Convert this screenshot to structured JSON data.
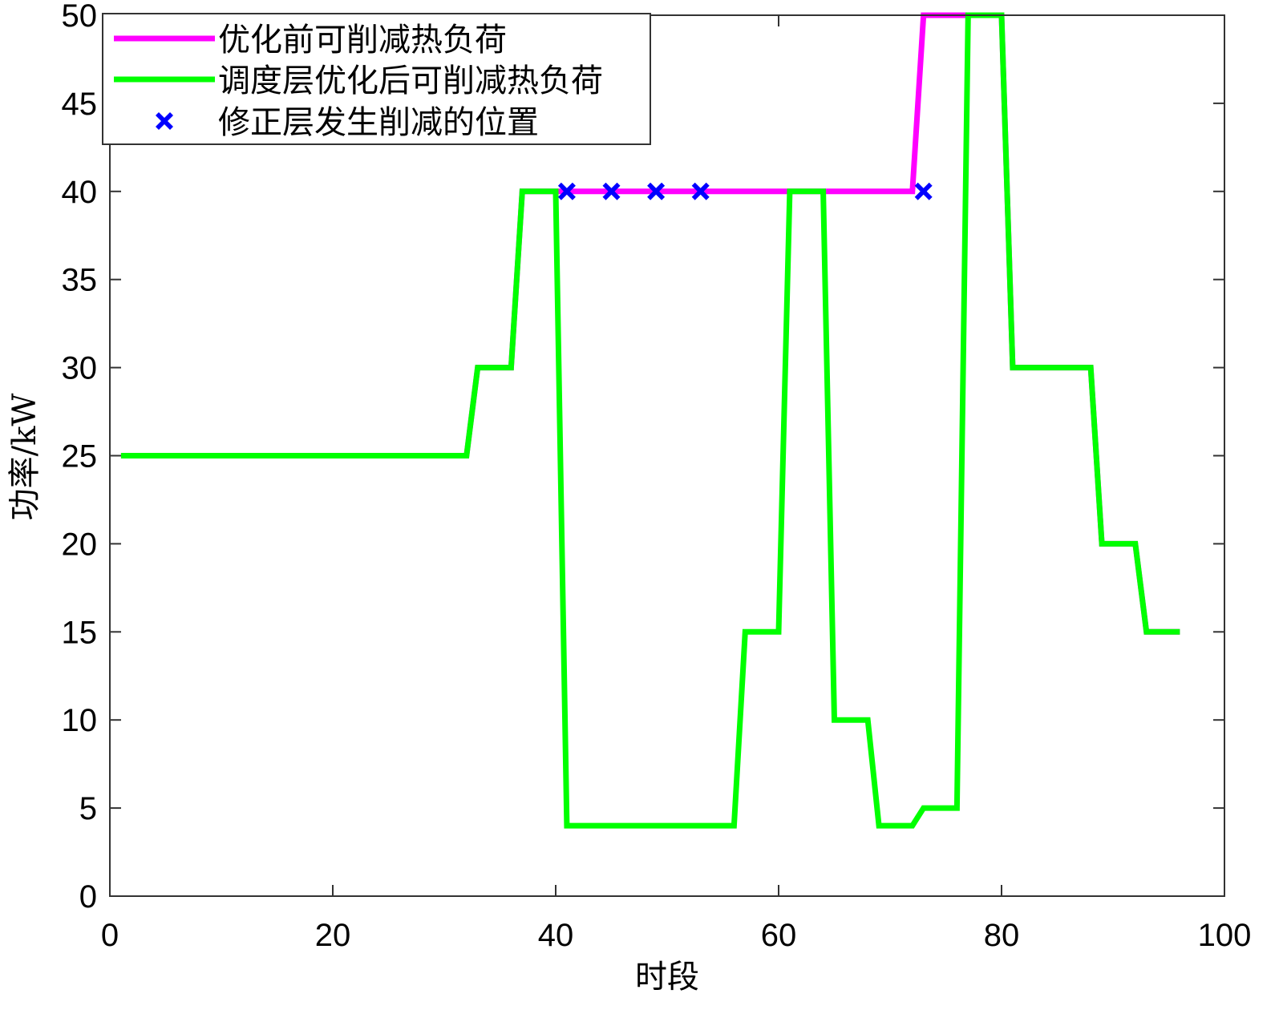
{
  "chart_data": {
    "type": "line",
    "title": "",
    "xlabel": "时段",
    "ylabel": "功率/kW",
    "xlim": [
      0,
      100
    ],
    "ylim": [
      0,
      50
    ],
    "xticks": [
      0,
      20,
      40,
      60,
      80,
      100
    ],
    "yticks": [
      0,
      5,
      10,
      15,
      20,
      25,
      30,
      35,
      40,
      45,
      50
    ],
    "grid": false,
    "legend_position": "top-left",
    "series": [
      {
        "name": "优化前可削减热负荷",
        "color": "#ff00ff",
        "points": [
          [
            1,
            25
          ],
          [
            32,
            25
          ],
          [
            33,
            30
          ],
          [
            36,
            30
          ],
          [
            37,
            40
          ],
          [
            72,
            40
          ],
          [
            73,
            50
          ],
          [
            80,
            50
          ],
          [
            81,
            30
          ],
          [
            88,
            30
          ],
          [
            89,
            20
          ],
          [
            92,
            20
          ],
          [
            93,
            15
          ],
          [
            96,
            15
          ]
        ]
      },
      {
        "name": "调度层优化后可削减热负荷",
        "color": "#00ff00",
        "points": [
          [
            1,
            25
          ],
          [
            32,
            25
          ],
          [
            33,
            30
          ],
          [
            36,
            30
          ],
          [
            37,
            40
          ],
          [
            40,
            40
          ],
          [
            41,
            4
          ],
          [
            56,
            4
          ],
          [
            57,
            15
          ],
          [
            60,
            15
          ],
          [
            61,
            40
          ],
          [
            64,
            40
          ],
          [
            65,
            10
          ],
          [
            68,
            10
          ],
          [
            69,
            4
          ],
          [
            72,
            4
          ],
          [
            73,
            5
          ],
          [
            76,
            5
          ],
          [
            77,
            50
          ],
          [
            80,
            50
          ],
          [
            81,
            30
          ],
          [
            88,
            30
          ],
          [
            89,
            20
          ],
          [
            92,
            20
          ],
          [
            93,
            15
          ],
          [
            96,
            15
          ]
        ]
      },
      {
        "name": "修正层发生削减的位置",
        "color": "#0000ff",
        "marker": "x-filled",
        "points": [
          [
            41,
            40
          ],
          [
            45,
            40
          ],
          [
            49,
            40
          ],
          [
            53,
            40
          ],
          [
            73,
            40
          ]
        ]
      }
    ]
  }
}
